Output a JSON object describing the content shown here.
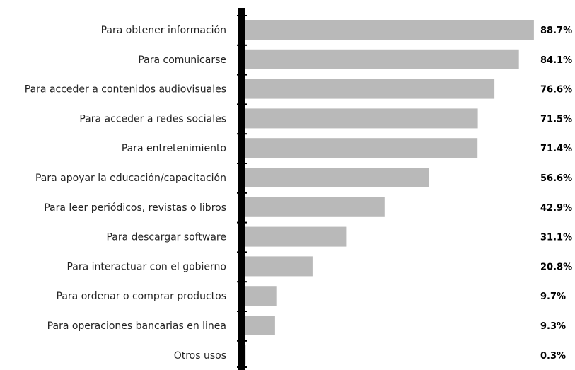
{
  "chart_data": {
    "type": "bar",
    "orientation": "horizontal",
    "title": "",
    "xlabel": "",
    "ylabel": "",
    "categories": [
      "Para obtener información",
      "Para comunicarse",
      "Para acceder a contenidos audiovisuales",
      "Para acceder a redes sociales",
      "Para entretenimiento",
      "Para apoyar la educación/capacitación",
      "Para leer periódicos, revistas o libros",
      "Para descargar software",
      "Para interactuar con el gobierno",
      "Para ordenar o comprar productos",
      "Para operaciones bancarias en linea",
      "Otros usos"
    ],
    "values": [
      88.7,
      84.1,
      76.6,
      71.5,
      71.4,
      56.6,
      42.9,
      31.1,
      20.8,
      9.7,
      9.3,
      0.3
    ],
    "value_labels": [
      "88.7%",
      "84.1%",
      "76.6%",
      "71.5%",
      "71.4%",
      "56.6%",
      "42.9%",
      "31.1%",
      "20.8%",
      "9.7%",
      "9.3%",
      "0.3%"
    ],
    "xlim": [
      0,
      90
    ],
    "grid": false,
    "legend": "none",
    "colors": {
      "bar": "#b9b9b9",
      "axis": "#000000",
      "text": "#222222"
    }
  }
}
